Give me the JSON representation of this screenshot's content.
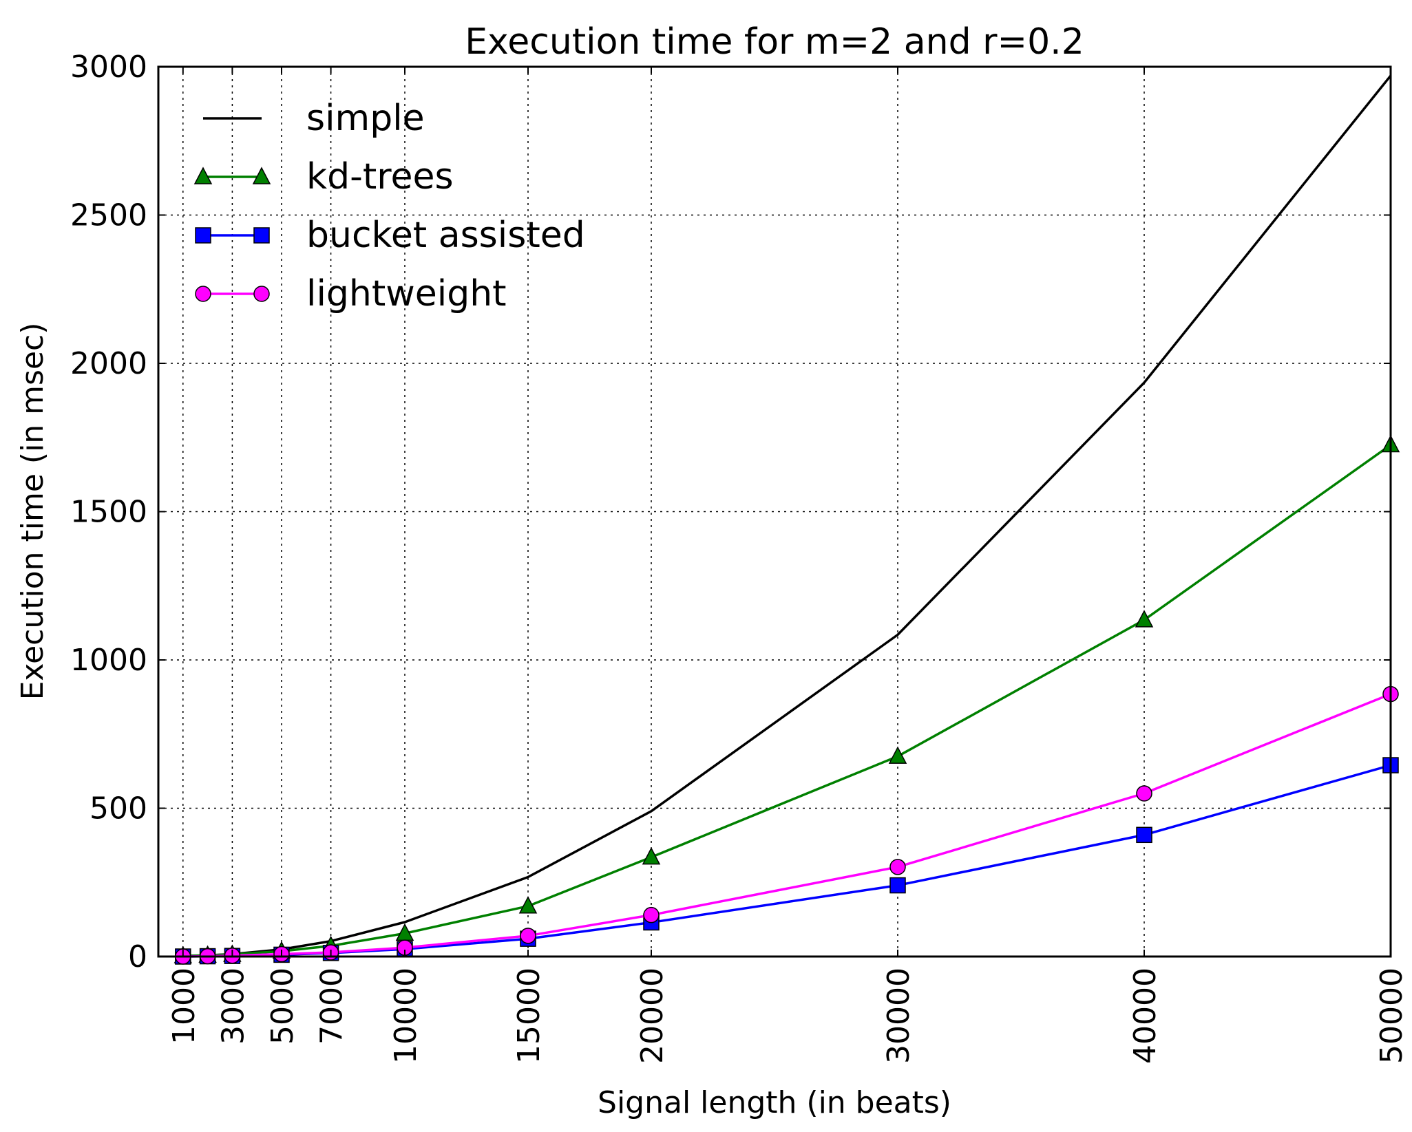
{
  "chart_data": {
    "type": "line",
    "title": "Execution time for m=2 and r=0.2",
    "xlabel": "Signal length (in beats)",
    "ylabel": "Execution time (in msec)",
    "x": [
      1000,
      2000,
      3000,
      5000,
      7000,
      10000,
      15000,
      20000,
      30000,
      40000,
      50000
    ],
    "xticks": [
      1000,
      3000,
      5000,
      7000,
      10000,
      15000,
      20000,
      30000,
      40000,
      50000
    ],
    "xtick_labels": [
      "1000",
      "3000",
      "5000",
      "7000",
      "10000",
      "15000",
      "20000",
      "30000",
      "40000",
      "50000"
    ],
    "yticks": [
      0,
      500,
      1000,
      1500,
      2000,
      2500,
      3000
    ],
    "ytick_labels": [
      "0",
      "500",
      "1000",
      "1500",
      "2000",
      "2500",
      "3000"
    ],
    "xlim": [
      0,
      50000
    ],
    "ylim": [
      0,
      3000
    ],
    "grid": true,
    "legend_position": "top-left",
    "series": [
      {
        "name": "simple",
        "color": "#000000",
        "marker": "none",
        "values": [
          1,
          4,
          8,
          24,
          52,
          116,
          268,
          490,
          1085,
          1935,
          2970
        ]
      },
      {
        "name": "kd-trees",
        "color": "#008000",
        "marker": "triangle",
        "values": [
          2,
          4,
          7,
          18,
          36,
          78,
          170,
          335,
          675,
          1135,
          1725
        ]
      },
      {
        "name": "bucket assisted",
        "color": "#0000ff",
        "marker": "square",
        "values": [
          0,
          1,
          2,
          6,
          12,
          25,
          60,
          115,
          240,
          410,
          645
        ]
      },
      {
        "name": "lightweight",
        "color": "#ff00ff",
        "marker": "circle",
        "values": [
          0,
          1,
          3,
          8,
          14,
          30,
          70,
          140,
          302,
          550,
          885
        ]
      }
    ]
  }
}
